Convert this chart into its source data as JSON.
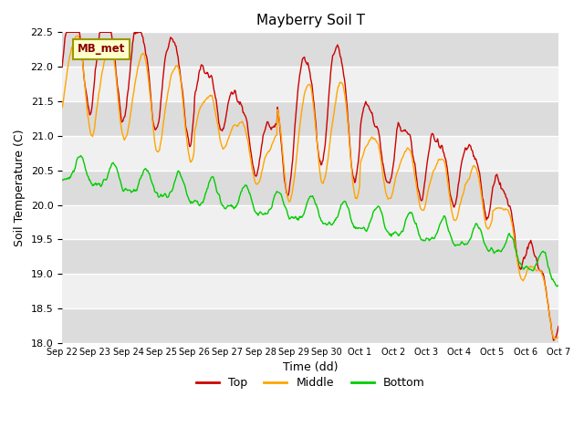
{
  "title": "Mayberry Soil T",
  "xlabel": "Time (dd)",
  "ylabel": "Soil Temperature (C)",
  "ylim": [
    18.0,
    22.5
  ],
  "yticks": [
    18.0,
    18.5,
    19.0,
    19.5,
    20.0,
    20.5,
    21.0,
    21.5,
    22.0,
    22.5
  ],
  "xtick_labels": [
    "Sep 22",
    "Sep 23",
    "Sep 24",
    "Sep 25",
    "Sep 26",
    "Sep 27",
    "Sep 28",
    "Sep 29",
    "Sep 30",
    "Oct 1",
    "Oct 2",
    "Oct 3",
    "Oct 4",
    "Oct 5",
    "Oct 6",
    "Oct 7"
  ],
  "color_top": "#cc0000",
  "color_middle": "#ffa500",
  "color_bottom": "#00cc00",
  "legend_label_top": "Top",
  "legend_label_middle": "Middle",
  "legend_label_bottom": "Bottom",
  "annotation_text": "MB_met",
  "annotation_bg": "#ffffcc",
  "annotation_border": "#999900",
  "bg_color": "#ffffff",
  "band_light": "#f0f0f0",
  "band_dark": "#dcdcdc",
  "linewidth": 1.0
}
